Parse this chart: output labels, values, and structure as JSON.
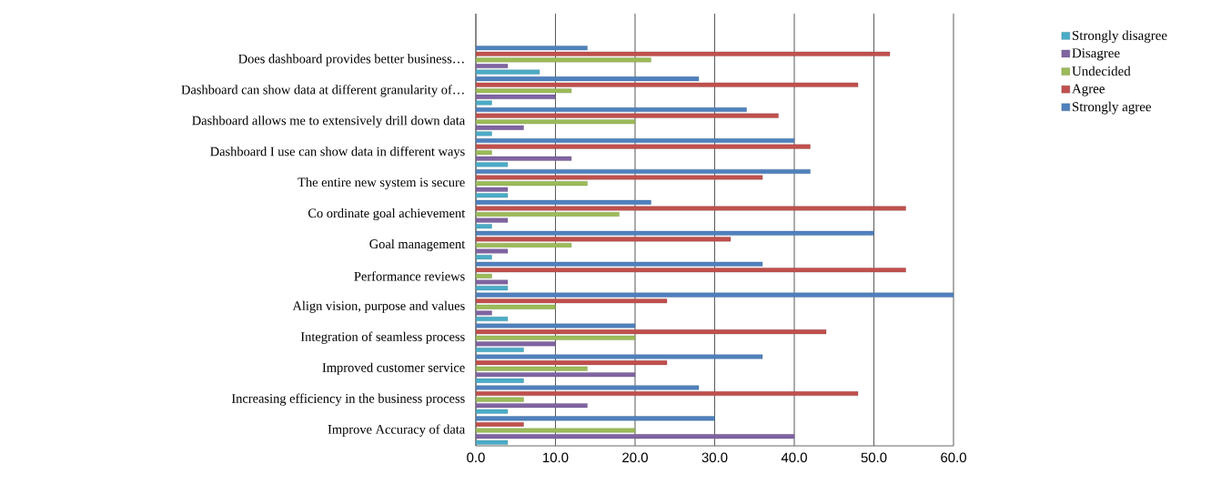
{
  "chart_data": {
    "type": "bar",
    "orientation": "horizontal",
    "categories": [
      "Does dashboard provides better business…",
      "Dashboard can show data at different granularity of…",
      "Dashboard allows me to extensively drill down data",
      "Dashboard I use can show data in different ways",
      "The entire new system is secure",
      "Co ordinate goal achievement",
      "Goal management",
      "Performance reviews",
      "Align vision, purpose and values",
      "Integration of seamless process",
      "Improved customer service",
      "Increasing efficiency in the business process",
      "Improve Accuracy of data"
    ],
    "series": [
      {
        "name": "Strongly disagree",
        "color": "#4bacc6",
        "values": [
          8,
          2,
          2,
          4,
          4,
          2,
          2,
          4,
          4,
          6,
          6,
          4,
          4
        ]
      },
      {
        "name": "Disagree",
        "color": "#8064a2",
        "values": [
          4,
          10,
          6,
          12,
          4,
          4,
          4,
          4,
          2,
          10,
          20,
          14,
          40
        ]
      },
      {
        "name": "Undecided",
        "color": "#9bbb59",
        "values": [
          22,
          12,
          20,
          2,
          14,
          18,
          12,
          2,
          10,
          20,
          14,
          6,
          20
        ]
      },
      {
        "name": "Agree",
        "color": "#c0504d",
        "values": [
          52,
          48,
          38,
          42,
          36,
          54,
          32,
          54,
          24,
          44,
          24,
          48,
          6
        ]
      },
      {
        "name": "Strongly agree",
        "color": "#4f81bd",
        "values": [
          14,
          28,
          34,
          40,
          42,
          22,
          50,
          36,
          60,
          20,
          36,
          28,
          30
        ]
      }
    ],
    "xlim": [
      0,
      60
    ],
    "xticks": [
      {
        "value": 0,
        "label": "0.0"
      },
      {
        "value": 10,
        "label": "10.0"
      },
      {
        "value": 20,
        "label": "20.0"
      },
      {
        "value": 30,
        "label": "30.0"
      },
      {
        "value": 40,
        "label": "40.0"
      },
      {
        "value": 50,
        "label": "50.0"
      },
      {
        "value": 60,
        "label": "60.0"
      }
    ],
    "grid": "x",
    "legend": "right"
  }
}
